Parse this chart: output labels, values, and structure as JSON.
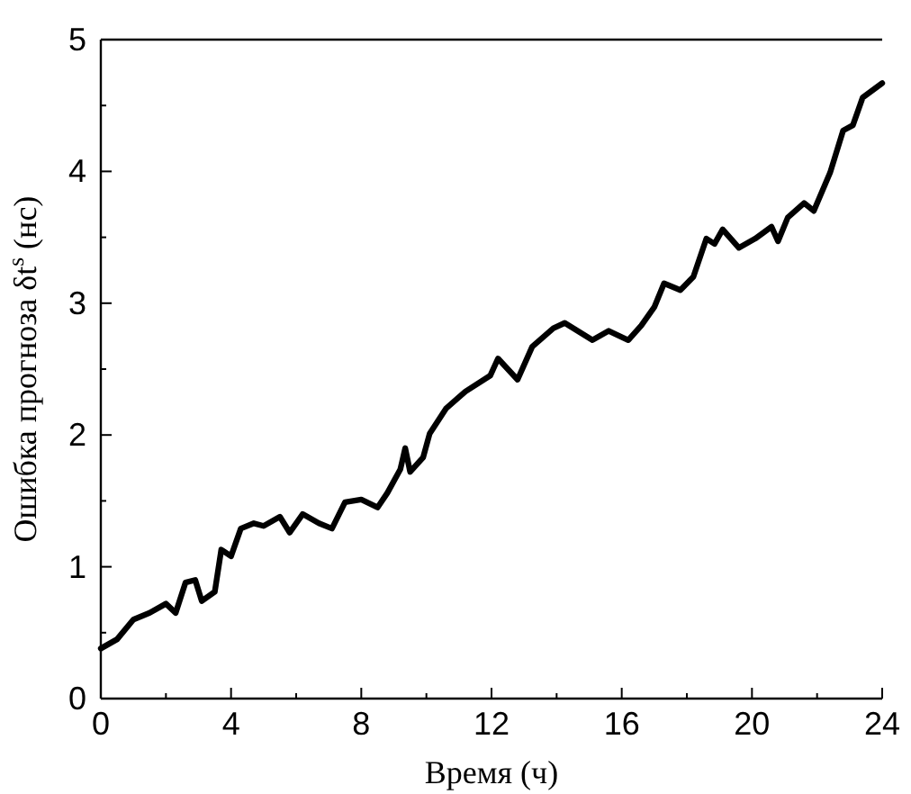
{
  "chart_data": {
    "type": "line",
    "xlabel": "Время (ч)",
    "ylabel": "Ошибка прогноза δt$^{s}$ (нс)",
    "xlim": [
      0,
      24
    ],
    "ylim": [
      0,
      5
    ],
    "xticks": [
      0,
      4,
      8,
      12,
      16,
      20,
      24
    ],
    "yticks": [
      0,
      1,
      2,
      3,
      4,
      5
    ],
    "grid": false,
    "marker": "none",
    "line_style": "solid",
    "series": [
      {
        "color": "#000000",
        "x": [
          0,
          0.5,
          1,
          1.5,
          2,
          2.3,
          2.6,
          2.9,
          3.1,
          3.5,
          3.7,
          4,
          4.3,
          4.7,
          5,
          5.5,
          5.8,
          6.2,
          6.7,
          7.1,
          7.5,
          8,
          8.5,
          8.8,
          9.2,
          9.35,
          9.5,
          9.9,
          10.1,
          10.6,
          11.2,
          11.96,
          12.2,
          12.8,
          13.25,
          13.9,
          14.25,
          15.1,
          15.6,
          16.2,
          16.6,
          17,
          17.3,
          17.8,
          18.2,
          18.6,
          18.85,
          19.1,
          19.6,
          20.1,
          20.6,
          20.8,
          21.1,
          21.6,
          21.9,
          22.4,
          22.8,
          23.1,
          23.4,
          24
        ],
        "values": [
          0.38,
          0.45,
          0.6,
          0.65,
          0.72,
          0.65,
          0.88,
          0.9,
          0.74,
          0.81,
          1.13,
          1.08,
          1.29,
          1.33,
          1.31,
          1.38,
          1.26,
          1.4,
          1.33,
          1.29,
          1.49,
          1.51,
          1.45,
          1.56,
          1.74,
          1.9,
          1.72,
          1.83,
          2.01,
          2.2,
          2.33,
          2.45,
          2.58,
          2.42,
          2.67,
          2.81,
          2.85,
          2.72,
          2.79,
          2.72,
          2.83,
          2.97,
          3.15,
          3.1,
          3.2,
          3.49,
          3.45,
          3.56,
          3.42,
          3.49,
          3.58,
          3.47,
          3.65,
          3.76,
          3.7,
          3.99,
          4.31,
          4.35,
          4.56,
          4.67
        ]
      }
    ]
  }
}
